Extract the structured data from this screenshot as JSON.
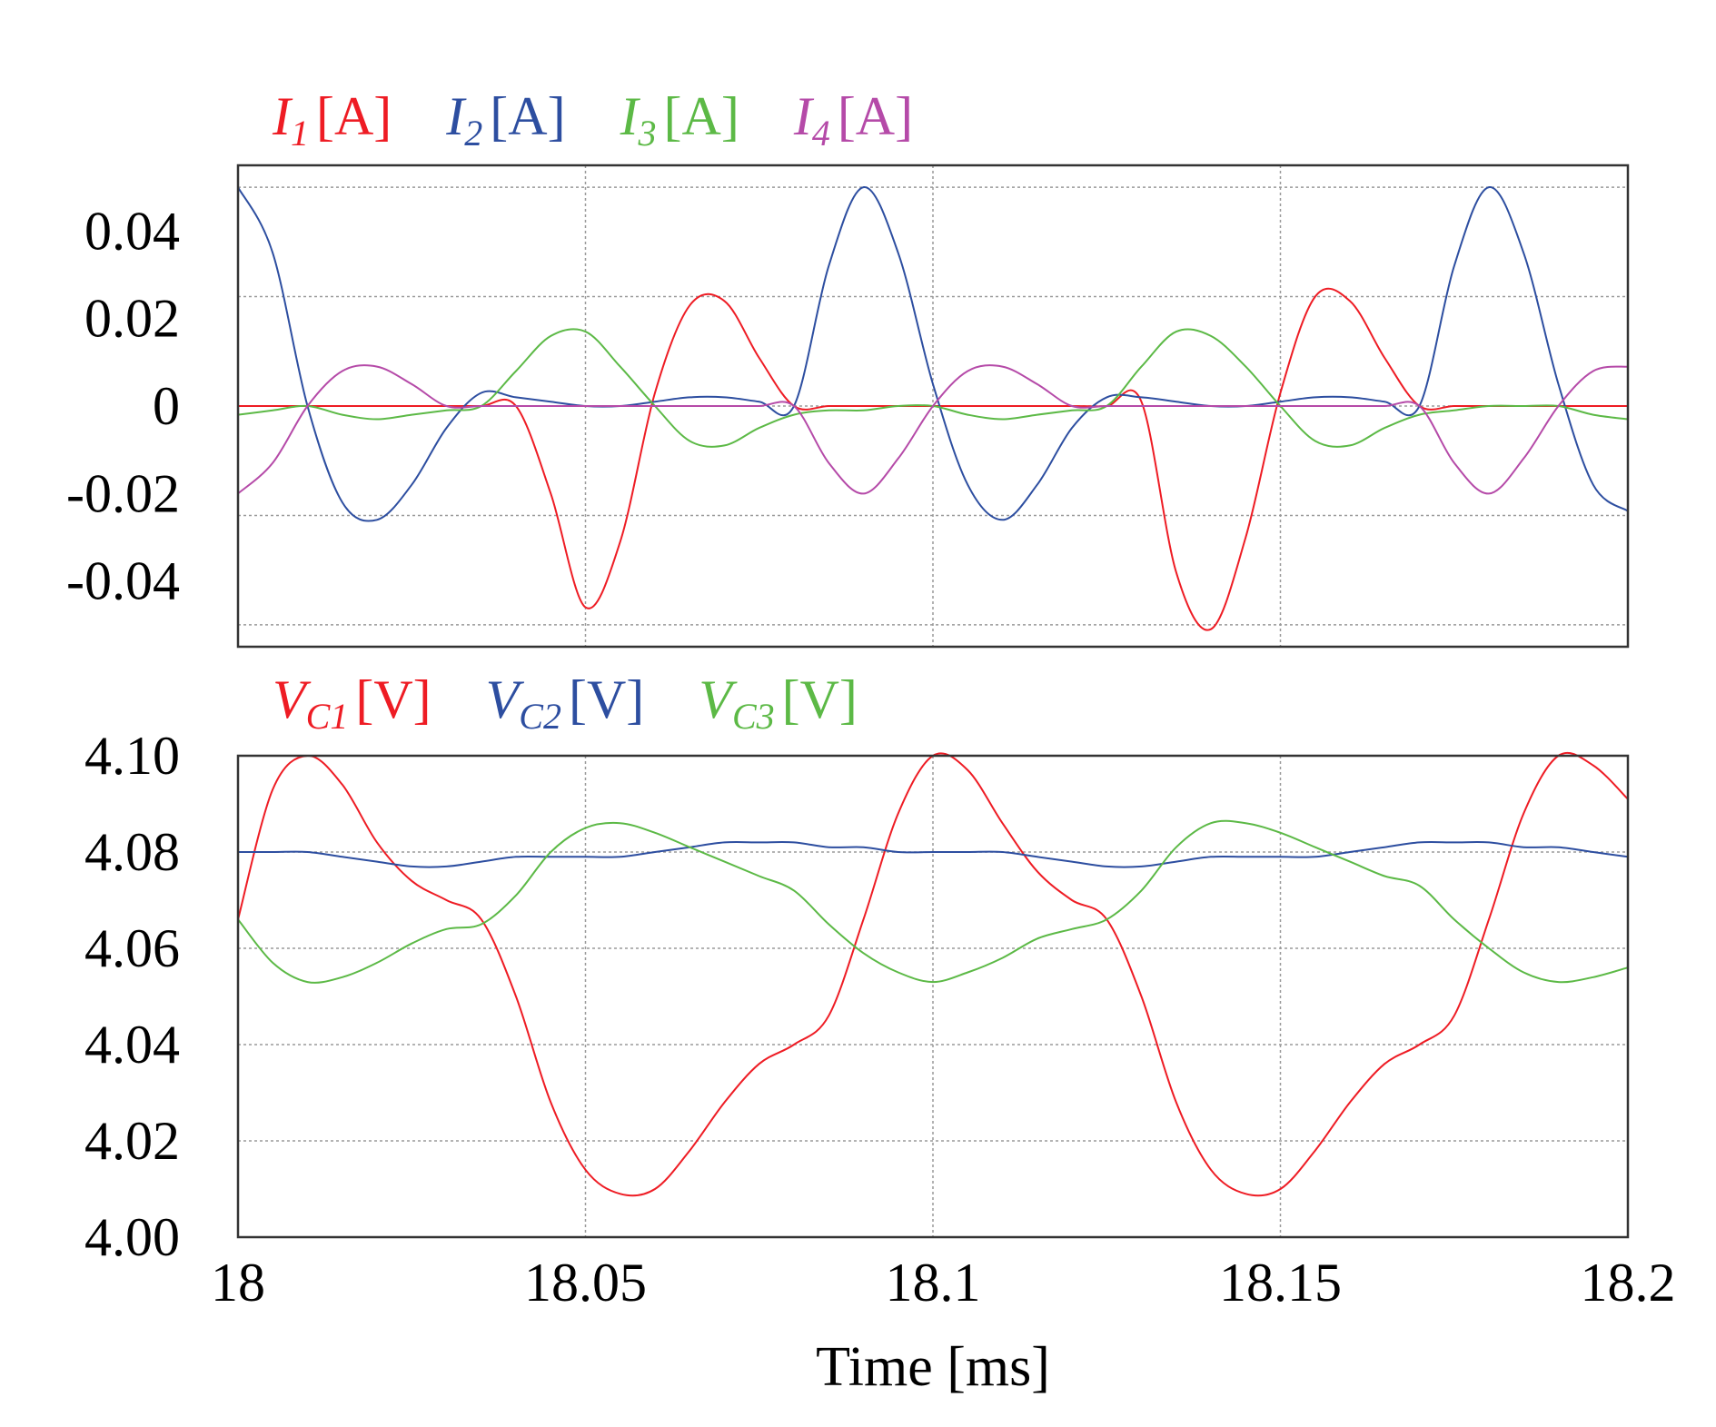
{
  "chart_data": [
    {
      "type": "line",
      "xlabel": "Time [ms]",
      "xlim": [
        18.0,
        18.2
      ],
      "x_ticks": [
        "18",
        "18.05",
        "18.1",
        "18.15",
        "18.2"
      ],
      "ylim": [
        -0.055,
        0.055
      ],
      "y_ticks": [
        "0.04",
        "0.02",
        "0",
        "-0.02",
        "-0.04"
      ],
      "gridlines_y": [
        0.05,
        0.025,
        0,
        -0.025,
        -0.05
      ],
      "legend": [
        {
          "symbol": "I",
          "sub": "1",
          "unit": "[A]",
          "color": "#ee1c24"
        },
        {
          "symbol": "I",
          "sub": "2",
          "unit": "[A]",
          "color": "#2d4ea0"
        },
        {
          "symbol": "I",
          "sub": "3",
          "unit": "[A]",
          "color": "#5cb946"
        },
        {
          "symbol": "I",
          "sub": "4",
          "unit": "[A]",
          "color": "#b54aa8"
        }
      ],
      "x": [
        18.0,
        18.005,
        18.01,
        18.015,
        18.02,
        18.025,
        18.03,
        18.035,
        18.04,
        18.045,
        18.05,
        18.055,
        18.06,
        18.065,
        18.07,
        18.075,
        18.08,
        18.085,
        18.09,
        18.095,
        18.1,
        18.105,
        18.11,
        18.115,
        18.12,
        18.125,
        18.13,
        18.135,
        18.14,
        18.145,
        18.15,
        18.155,
        18.16,
        18.165,
        18.17,
        18.175,
        18.18,
        18.185,
        18.19,
        18.195,
        18.2
      ],
      "series": [
        {
          "name": "I1",
          "values": [
            0,
            0,
            0,
            0,
            0,
            0,
            0,
            0,
            0,
            -0.02,
            -0.046,
            -0.031,
            0.003,
            0.023,
            0.024,
            0.011,
            0,
            0,
            0,
            0,
            0,
            0,
            0,
            0,
            0,
            0,
            0.001,
            -0.038,
            -0.051,
            -0.03,
            0.003,
            0.025,
            0.024,
            0.011,
            0,
            0,
            0,
            0,
            0,
            0,
            0
          ]
        },
        {
          "name": "I2",
          "values": [
            0.05,
            0.035,
            0,
            -0.022,
            -0.026,
            -0.018,
            -0.005,
            0.003,
            0.002,
            0.001,
            0,
            0,
            0.001,
            0.002,
            0.002,
            0.001,
            0,
            0.032,
            0.05,
            0.035,
            0.005,
            -0.018,
            -0.026,
            -0.018,
            -0.005,
            0.002,
            0.002,
            0.001,
            0,
            0,
            0.001,
            0.002,
            0.002,
            0.001,
            0,
            0.032,
            0.05,
            0.035,
            0.005,
            -0.018,
            -0.024
          ]
        },
        {
          "name": "I3",
          "values": [
            -0.002,
            -0.001,
            0,
            -0.002,
            -0.003,
            -0.002,
            -0.001,
            0,
            0.008,
            0.016,
            0.017,
            0.009,
            0,
            -0.008,
            -0.009,
            -0.005,
            -0.002,
            -0.001,
            -0.001,
            0,
            0,
            -0.002,
            -0.003,
            -0.002,
            -0.001,
            0,
            0.009,
            0.017,
            0.016,
            0.009,
            0,
            -0.008,
            -0.009,
            -0.005,
            -0.002,
            -0.001,
            0,
            0,
            0,
            -0.002,
            -0.003
          ]
        },
        {
          "name": "I4",
          "values": [
            -0.02,
            -0.013,
            0,
            0.008,
            0.009,
            0.005,
            0,
            0,
            0,
            0,
            0,
            0,
            0,
            0,
            0,
            0,
            0,
            -0.013,
            -0.02,
            -0.012,
            0,
            0.008,
            0.009,
            0.005,
            0,
            0,
            0,
            0,
            0,
            0,
            0,
            0,
            0,
            0,
            0,
            -0.013,
            -0.02,
            -0.012,
            0,
            0.008,
            0.009
          ]
        }
      ]
    },
    {
      "type": "line",
      "xlabel": "Time [ms]",
      "xlim": [
        18.0,
        18.2
      ],
      "x_ticks": [
        "18",
        "18.05",
        "18.1",
        "18.15",
        "18.2"
      ],
      "ylim": [
        4.0,
        4.1
      ],
      "y_ticks": [
        "4.10",
        "4.08",
        "4.06",
        "4.04",
        "4.02",
        "4.00"
      ],
      "gridlines_y": [
        4.1,
        4.08,
        4.06,
        4.04,
        4.02
      ],
      "legend": [
        {
          "symbol": "V",
          "sub": "C1",
          "unit": "[V]",
          "color": "#ee1c24"
        },
        {
          "symbol": "V",
          "sub": "C2",
          "unit": "[V]",
          "color": "#2d4ea0"
        },
        {
          "symbol": "V",
          "sub": "C3",
          "unit": "[V]",
          "color": "#5cb946"
        }
      ],
      "x": [
        18.0,
        18.005,
        18.01,
        18.015,
        18.02,
        18.025,
        18.03,
        18.035,
        18.04,
        18.045,
        18.05,
        18.055,
        18.06,
        18.065,
        18.07,
        18.075,
        18.08,
        18.085,
        18.09,
        18.095,
        18.1,
        18.105,
        18.11,
        18.115,
        18.12,
        18.125,
        18.13,
        18.135,
        18.14,
        18.145,
        18.15,
        18.155,
        18.16,
        18.165,
        18.17,
        18.175,
        18.18,
        18.185,
        18.19,
        18.195,
        18.2
      ],
      "series": [
        {
          "name": "VC1",
          "values": [
            4.066,
            4.093,
            4.1,
            4.094,
            4.082,
            4.074,
            4.07,
            4.066,
            4.05,
            4.028,
            4.014,
            4.009,
            4.01,
            4.018,
            4.028,
            4.036,
            4.04,
            4.046,
            4.066,
            4.088,
            4.1,
            4.097,
            4.086,
            4.076,
            4.07,
            4.066,
            4.05,
            4.028,
            4.014,
            4.009,
            4.01,
            4.018,
            4.028,
            4.036,
            4.04,
            4.046,
            4.066,
            4.088,
            4.1,
            4.098,
            4.091
          ]
        },
        {
          "name": "VC2",
          "values": [
            4.08,
            4.08,
            4.08,
            4.079,
            4.078,
            4.077,
            4.077,
            4.078,
            4.079,
            4.079,
            4.079,
            4.079,
            4.08,
            4.081,
            4.082,
            4.082,
            4.082,
            4.081,
            4.081,
            4.08,
            4.08,
            4.08,
            4.08,
            4.079,
            4.078,
            4.077,
            4.077,
            4.078,
            4.079,
            4.079,
            4.079,
            4.079,
            4.08,
            4.081,
            4.082,
            4.082,
            4.082,
            4.081,
            4.081,
            4.08,
            4.079
          ]
        },
        {
          "name": "VC3",
          "values": [
            4.066,
            4.057,
            4.053,
            4.054,
            4.057,
            4.061,
            4.064,
            4.065,
            4.071,
            4.08,
            4.085,
            4.086,
            4.084,
            4.081,
            4.078,
            4.075,
            4.072,
            4.065,
            4.059,
            4.055,
            4.053,
            4.055,
            4.058,
            4.062,
            4.064,
            4.066,
            4.072,
            4.081,
            4.086,
            4.086,
            4.084,
            4.081,
            4.078,
            4.075,
            4.073,
            4.066,
            4.06,
            4.055,
            4.053,
            4.054,
            4.056
          ]
        }
      ]
    }
  ]
}
